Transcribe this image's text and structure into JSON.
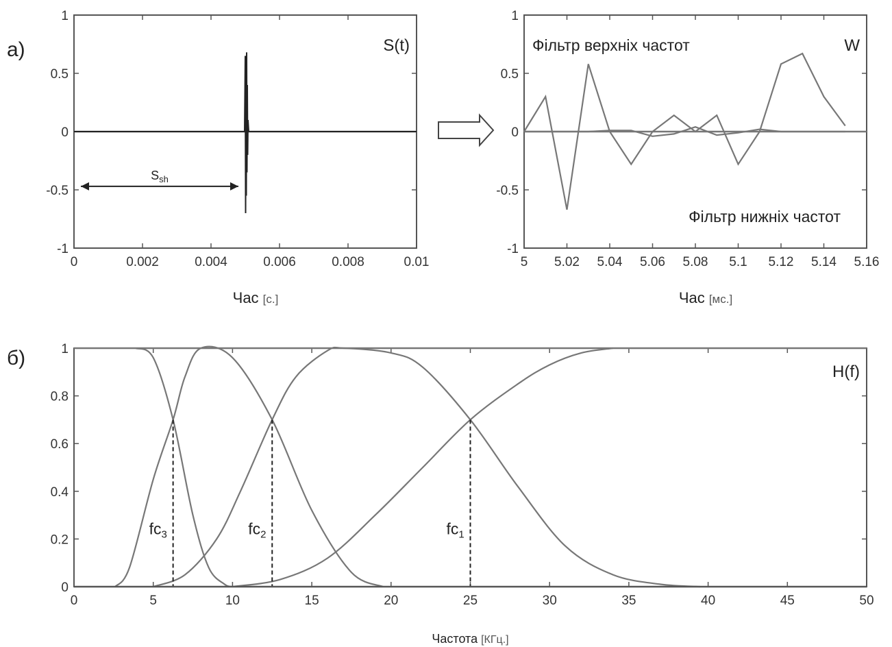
{
  "panel_labels": {
    "a": "а)",
    "b": "б)"
  },
  "arrow": {
    "name": "right-arrow-icon"
  },
  "chart_data": [
    {
      "id": "signal",
      "type": "line",
      "title": "S(t)",
      "xlabel": "Час",
      "xunit": "[с.]",
      "ylabel": "",
      "xlim": [
        0,
        0.01
      ],
      "ylim": [
        -1,
        1
      ],
      "xticks": [
        "0",
        "0.002",
        "0.004",
        "0.006",
        "0.008",
        "0.01"
      ],
      "yticks": [
        "1",
        "0.5",
        "0",
        "-0.5",
        "-1"
      ],
      "annotation": {
        "text": "S",
        "sub": "sh",
        "from": 0,
        "to": 0.0048,
        "y": -0.47
      },
      "series": [
        {
          "x": [
            0,
            0.00498,
            0.005,
            0.00501,
            0.00502,
            0.00503,
            0.00504,
            0.00505,
            0.00506,
            0.00507,
            0.00508,
            0.0051,
            0.01
          ],
          "y": [
            0,
            0,
            0.65,
            -0.7,
            0.6,
            -0.55,
            0.68,
            -0.35,
            0.4,
            -0.2,
            0.1,
            0,
            0
          ]
        }
      ]
    },
    {
      "id": "wavelet-filters",
      "type": "line",
      "title": "W",
      "xlabel": "Час",
      "xunit": "[мс.]",
      "ylabel": "",
      "xlim": [
        5,
        5.16
      ],
      "ylim": [
        -1,
        1
      ],
      "xticks": [
        "5",
        "5.02",
        "5.04",
        "5.06",
        "5.08",
        "5.1",
        "5.12",
        "5.14",
        "5.16"
      ],
      "yticks": [
        "1",
        "0.5",
        "0",
        "-0.5",
        "-1"
      ],
      "annotations": [
        "Фільтр верхніх частот",
        "Фільтр нижніх частот"
      ],
      "series": [
        {
          "name": "Фільтр верхніх частот",
          "x": [
            5,
            5.01,
            5.02,
            5.03,
            5.04,
            5.05,
            5.06,
            5.07,
            5.08,
            5.09,
            5.1,
            5.11,
            5.12,
            5.13,
            5.14,
            5.15
          ],
          "y": [
            0,
            0.3,
            -0.67,
            0.58,
            0,
            -0.28,
            0,
            0.14,
            0,
            0.14,
            -0.28,
            0,
            0.58,
            0.67,
            0.3,
            0.05
          ]
        },
        {
          "name": "Фільтр нижніх частот",
          "x": [
            5,
            5.01,
            5.02,
            5.03,
            5.04,
            5.05,
            5.06,
            5.07,
            5.08,
            5.09,
            5.1,
            5.11,
            5.12,
            5.13,
            5.14,
            5.15
          ],
          "y": [
            0,
            0,
            0,
            0,
            0.01,
            0.01,
            -0.04,
            -0.02,
            0.04,
            -0.03,
            -0.01,
            0.02,
            0,
            0,
            0,
            0
          ]
        }
      ]
    },
    {
      "id": "filter-response",
      "type": "line",
      "title": "H(f)",
      "xlabel": "Частота",
      "xunit": "[КГц.]",
      "ylabel": "",
      "xlim": [
        0,
        50
      ],
      "ylim": [
        0,
        1
      ],
      "xticks": [
        "0",
        "5",
        "10",
        "15",
        "20",
        "25",
        "30",
        "35",
        "40",
        "45",
        "50"
      ],
      "yticks": [
        "1",
        "0.8",
        "0.6",
        "0.4",
        "0.2",
        "0"
      ],
      "cutoffs": [
        {
          "label": "fc",
          "sub": "3",
          "x": 6.25,
          "y": 0.7
        },
        {
          "label": "fc",
          "sub": "2",
          "x": 12.5,
          "y": 0.7
        },
        {
          "label": "fc",
          "sub": "1",
          "x": 25,
          "y": 0.7
        }
      ],
      "series": [
        {
          "x": [
            3.9,
            5,
            6.25,
            7.5,
            8.5,
            9.5,
            10
          ],
          "y": [
            1,
            0.96,
            0.7,
            0.3,
            0.08,
            0.01,
            0
          ]
        },
        {
          "x": [
            2.6,
            3.5,
            5,
            6.25,
            7,
            8,
            10,
            12.5,
            15,
            17.5,
            19.5
          ],
          "y": [
            0,
            0.08,
            0.45,
            0.7,
            0.88,
            1,
            0.96,
            0.7,
            0.32,
            0.06,
            0
          ]
        },
        {
          "x": [
            5,
            7,
            9,
            10.5,
            12.5,
            14,
            16,
            17,
            20,
            22,
            25,
            28,
            31,
            34,
            37,
            39.5
          ],
          "y": [
            0,
            0.05,
            0.2,
            0.4,
            0.7,
            0.88,
            0.99,
            1,
            0.98,
            0.92,
            0.7,
            0.42,
            0.17,
            0.05,
            0.01,
            0
          ]
        },
        {
          "x": [
            10,
            13,
            16,
            19,
            22,
            25,
            28,
            30,
            32,
            34
          ],
          "y": [
            0,
            0.03,
            0.12,
            0.3,
            0.5,
            0.7,
            0.85,
            0.93,
            0.98,
            1
          ]
        }
      ]
    }
  ]
}
